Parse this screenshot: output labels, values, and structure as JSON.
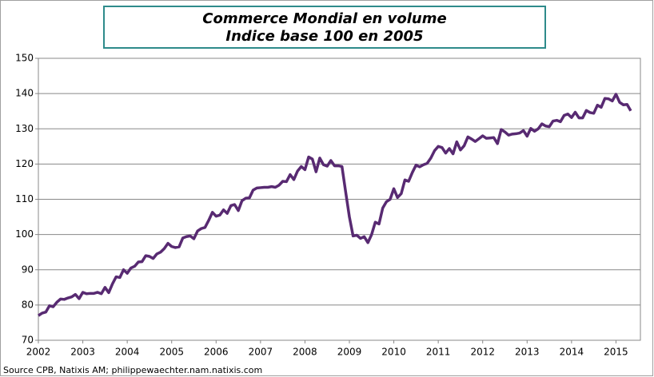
{
  "chart_data": {
    "type": "line",
    "title": "Commerce Mondial en volume",
    "subtitle": "Indice base 100 en 2005",
    "source": "Source CPB, Natixis AM; philippewaechter.nam.natixis.com",
    "xlim": [
      2002,
      2015.55
    ],
    "xticks": [
      2002,
      2003,
      2004,
      2005,
      2006,
      2007,
      2008,
      2009,
      2010,
      2011,
      2012,
      2013,
      2014,
      2015
    ],
    "ylim": [
      70,
      150
    ],
    "yticks": [
      70,
      80,
      90,
      100,
      110,
      120,
      130,
      140,
      150
    ],
    "grid": true,
    "series": [
      {
        "color": "#582a72",
        "x": [
          2002,
          2002.083,
          2002.167,
          2002.25,
          2002.333,
          2002.417,
          2002.5,
          2002.583,
          2002.667,
          2002.75,
          2002.833,
          2002.917,
          2003,
          2003.083,
          2003.167,
          2003.25,
          2003.333,
          2003.417,
          2003.5,
          2003.583,
          2003.667,
          2003.75,
          2003.833,
          2003.917,
          2004,
          2004.083,
          2004.167,
          2004.25,
          2004.333,
          2004.417,
          2004.5,
          2004.583,
          2004.667,
          2004.75,
          2004.833,
          2004.917,
          2005,
          2005.083,
          2005.167,
          2005.25,
          2005.333,
          2005.417,
          2005.5,
          2005.583,
          2005.667,
          2005.75,
          2005.833,
          2005.917,
          2006,
          2006.083,
          2006.167,
          2006.25,
          2006.333,
          2006.417,
          2006.5,
          2006.583,
          2006.667,
          2006.75,
          2006.833,
          2006.917,
          2007,
          2007.083,
          2007.167,
          2007.25,
          2007.333,
          2007.417,
          2007.5,
          2007.583,
          2007.667,
          2007.75,
          2007.833,
          2007.917,
          2008,
          2008.083,
          2008.167,
          2008.25,
          2008.333,
          2008.417,
          2008.5,
          2008.583,
          2008.667,
          2008.75,
          2008.833,
          2008.917,
          2009,
          2009.083,
          2009.167,
          2009.25,
          2009.333,
          2009.417,
          2009.5,
          2009.583,
          2009.667,
          2009.75,
          2009.833,
          2009.917,
          2010,
          2010.083,
          2010.167,
          2010.25,
          2010.333,
          2010.417,
          2010.5,
          2010.583,
          2010.667,
          2010.75,
          2010.833,
          2010.917,
          2011,
          2011.083,
          2011.167,
          2011.25,
          2011.333,
          2011.417,
          2011.5,
          2011.583,
          2011.667,
          2011.75,
          2011.833,
          2011.917,
          2012,
          2012.083,
          2012.167,
          2012.25,
          2012.333,
          2012.417,
          2012.5,
          2012.583,
          2012.667,
          2012.75,
          2012.833,
          2012.917,
          2013,
          2013.083,
          2013.167,
          2013.25,
          2013.333,
          2013.417,
          2013.5,
          2013.583,
          2013.667,
          2013.75,
          2013.833,
          2013.917,
          2014,
          2014.083,
          2014.167,
          2014.25,
          2014.333,
          2014.417,
          2014.5,
          2014.583,
          2014.667,
          2014.75,
          2014.833,
          2014.917,
          2015,
          2015.083,
          2015.167,
          2015.25,
          2015.333
        ],
        "values": [
          77,
          77.7,
          78,
          79.8,
          79.5,
          80.8,
          81.7,
          81.6,
          82,
          82.3,
          83,
          81.8,
          83.6,
          83.2,
          83.3,
          83.3,
          83.6,
          83.2,
          85,
          83.5,
          86,
          88,
          87.8,
          90,
          89,
          90.5,
          91,
          92.2,
          92.3,
          94,
          93.8,
          93.2,
          94.5,
          95,
          96,
          97.5,
          96.6,
          96.3,
          96.5,
          99,
          99.4,
          99.6,
          98.8,
          101,
          101.7,
          102,
          104,
          106.3,
          105.2,
          105.5,
          107,
          106,
          108.2,
          108.5,
          106.8,
          109.6,
          110.3,
          110.4,
          112.6,
          113.2,
          113.3,
          113.4,
          113.4,
          113.6,
          113.4,
          114,
          115.1,
          115,
          117,
          115.6,
          118,
          119.3,
          118.4,
          122,
          121.4,
          117.8,
          121.7,
          119.8,
          119.4,
          121,
          119.5,
          119.5,
          119.3,
          112,
          105,
          99.6,
          99.8,
          98.9,
          99.4,
          97.7,
          100,
          103.5,
          103,
          107.5,
          109.3,
          110,
          113,
          110.5,
          111.6,
          115.5,
          115.1,
          117.6,
          119.7,
          119.2,
          119.8,
          120.2,
          121.7,
          123.8,
          125,
          124.7,
          123.1,
          124.4,
          122.9,
          126.3,
          124,
          125.2,
          127.7,
          127.1,
          126.4,
          127.2,
          128,
          127.3,
          127.4,
          127.5,
          125.8,
          129.8,
          129.1,
          128.2,
          128.5,
          128.6,
          128.8,
          129.5,
          127.9,
          130.1,
          129.3,
          130,
          131.4,
          130.8,
          130.6,
          132.2,
          132.4,
          132,
          133.8,
          134.2,
          133.2,
          134.7,
          133.1,
          133.1,
          135.2,
          134.6,
          134.4,
          136.7,
          136.1,
          138.6,
          138.5,
          137.9,
          139.8,
          137.5,
          136.8,
          136.9,
          135.1
        ]
      }
    ]
  }
}
